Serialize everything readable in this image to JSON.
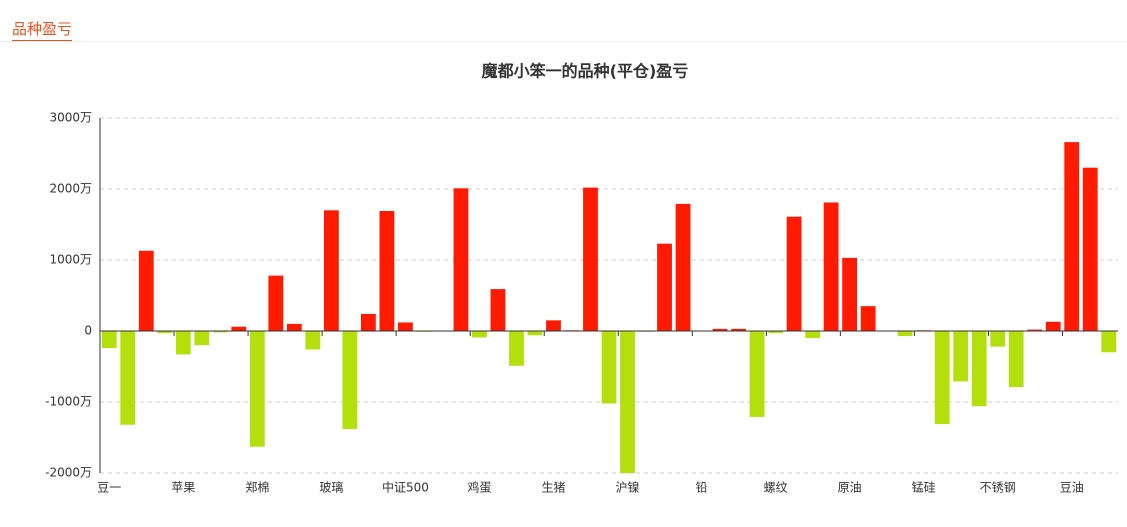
{
  "header": {
    "title": "品种盈亏"
  },
  "chart_data": {
    "type": "bar",
    "title": "魔都小笨一的品种(平仓)盈亏",
    "categories": [
      "豆一",
      null,
      null,
      null,
      "苹果",
      null,
      null,
      null,
      "郑棉",
      null,
      null,
      null,
      "玻璃",
      null,
      null,
      null,
      "中证500",
      null,
      null,
      null,
      "鸡蛋",
      null,
      null,
      null,
      "生猪",
      null,
      null,
      null,
      "沪镍",
      null,
      null,
      null,
      "铅",
      null,
      null,
      null,
      "螺纹",
      null,
      null,
      null,
      "原油",
      null,
      null,
      null,
      "锰硅",
      null,
      null,
      null,
      "不锈钢",
      null,
      null,
      null,
      "豆油",
      null,
      null
    ],
    "values": [
      -240,
      -1320,
      1130,
      -30,
      -330,
      -200,
      -20,
      60,
      -1630,
      780,
      100,
      -260,
      1700,
      -1380,
      240,
      1690,
      120,
      -10,
      0,
      2010,
      -90,
      590,
      -490,
      -60,
      150,
      10,
      2020,
      -1020,
      -2000,
      -10,
      1230,
      1790,
      0,
      30,
      30,
      -1210,
      -30,
      1610,
      -100,
      1810,
      1030,
      350,
      0,
      -70,
      10,
      -1310,
      -710,
      -1060,
      -220,
      -790,
      20,
      130,
      2660,
      2300,
      -300
    ],
    "positive_color": "#ff1a00",
    "negative_color": "#b3e00c",
    "ylim": [
      -2000,
      3000
    ],
    "yticks": [
      {
        "value": -2000,
        "label": "-2000万"
      },
      {
        "value": -1000,
        "label": "-1000万"
      },
      0,
      {
        "value": 1000,
        "label": "1000万"
      },
      {
        "value": 2000,
        "label": "2000万"
      },
      {
        "value": 3000,
        "label": "3000万"
      }
    ],
    "grid": true
  }
}
